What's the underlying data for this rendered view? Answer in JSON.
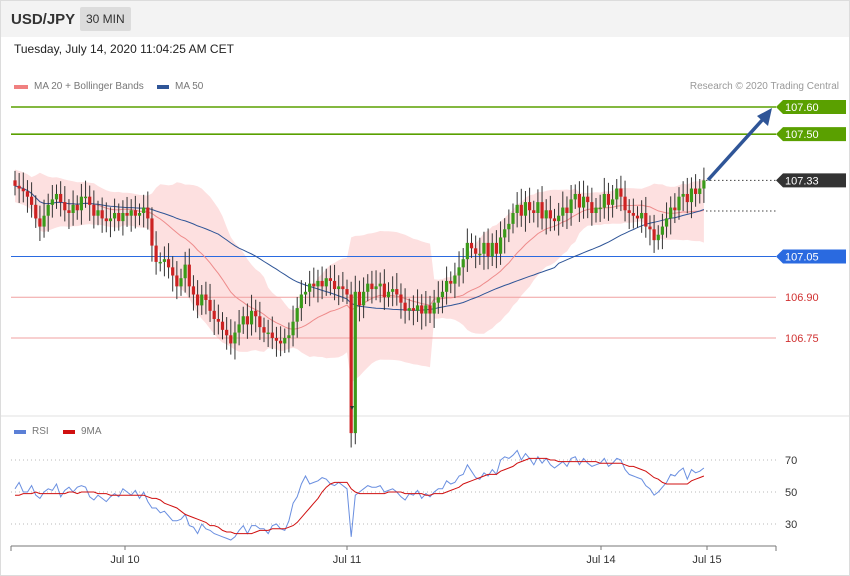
{
  "header": {
    "symbol": "USD/JPY",
    "timeframe": "30 MIN"
  },
  "timestamp": "Tuesday, July 14, 2020 11:04:25 AM CET",
  "legend_main": [
    {
      "label": "MA 20 + Bollinger Bands",
      "color": "#f08080"
    },
    {
      "label": "MA 50",
      "color": "#2f5597"
    }
  ],
  "copyright": "Research © 2020 Trading Central",
  "legend_rsi": [
    {
      "label": "RSI",
      "color": "#5b7fd6"
    },
    {
      "label": "9MA",
      "color": "#d01010"
    }
  ],
  "chart_data": {
    "type": "candlestick",
    "x_ticks": [
      "Jul 10",
      "Jul 11",
      "Jul 14",
      "Jul 15"
    ],
    "price_levels": [
      {
        "value": 107.6,
        "label": "107.60",
        "kind": "target",
        "color": "#5aa000"
      },
      {
        "value": 107.5,
        "label": "107.50",
        "kind": "target",
        "color": "#5aa000"
      },
      {
        "value": 107.33,
        "label": "107.33",
        "kind": "last",
        "color": "#333333"
      },
      {
        "value": 107.05,
        "label": "107.05",
        "kind": "pivot",
        "color": "#2a6ae0"
      },
      {
        "value": 106.9,
        "label": "106.90",
        "kind": "support",
        "color": "#e06060"
      },
      {
        "value": 106.75,
        "label": "106.75",
        "kind": "support",
        "color": "#e06060"
      }
    ],
    "close": [
      107.31,
      107.3,
      107.29,
      107.27,
      107.24,
      107.19,
      107.16,
      107.2,
      107.24,
      107.26,
      107.28,
      107.25,
      107.22,
      107.21,
      107.24,
      107.22,
      107.27,
      107.27,
      107.24,
      107.2,
      107.22,
      107.19,
      107.18,
      107.19,
      107.21,
      107.18,
      107.21,
      107.2,
      107.22,
      107.2,
      107.21,
      107.23,
      107.19,
      107.09,
      107.03,
      107.03,
      107.04,
      107.01,
      106.98,
      106.94,
      106.97,
      107.02,
      106.94,
      106.91,
      106.87,
      106.91,
      106.89,
      106.85,
      106.82,
      106.81,
      106.78,
      106.76,
      106.73,
      106.77,
      106.8,
      106.83,
      106.8,
      106.85,
      106.83,
      106.79,
      106.77,
      106.77,
      106.75,
      106.74,
      106.73,
      106.75,
      106.76,
      106.81,
      106.86,
      106.91,
      106.92,
      106.95,
      106.94,
      106.96,
      106.94,
      106.97,
      106.96,
      106.93,
      106.94,
      106.93,
      106.91,
      106.4,
      106.92,
      106.87,
      106.92,
      106.95,
      106.93,
      106.94,
      106.95,
      106.9,
      106.92,
      106.93,
      106.91,
      106.88,
      106.85,
      106.86,
      106.85,
      106.87,
      106.84,
      106.87,
      106.84,
      106.88,
      106.9,
      106.92,
      106.96,
      106.95,
      106.98,
      107.01,
      107.04,
      107.1,
      107.08,
      107.06,
      107.06,
      107.1,
      107.05,
      107.1,
      107.06,
      107.12,
      107.15,
      107.17,
      107.21,
      107.24,
      107.2,
      107.25,
      107.22,
      107.21,
      107.25,
      107.19,
      107.22,
      107.19,
      107.18,
      107.2,
      107.23,
      107.21,
      107.26,
      107.28,
      107.23,
      107.27,
      107.25,
      107.21,
      107.23,
      107.23,
      107.28,
      107.24,
      107.26,
      107.3,
      107.27,
      107.22,
      107.21,
      107.2,
      107.19,
      107.21,
      107.16,
      107.15,
      107.11,
      107.13,
      107.16,
      107.19,
      107.23,
      107.22,
      107.27,
      107.28,
      107.25,
      107.3,
      107.28,
      107.3,
      107.33
    ],
    "rsi_axis": [
      30,
      50,
      70
    ],
    "rsi": [
      52,
      56,
      50,
      50,
      54,
      48,
      46,
      50,
      52,
      51,
      55,
      47,
      51,
      53,
      50,
      53,
      54,
      53,
      47,
      45,
      48,
      46,
      44,
      47,
      49,
      47,
      52,
      50,
      48,
      51,
      46,
      50,
      44,
      40,
      40,
      37,
      38,
      35,
      32,
      32,
      33,
      36,
      29,
      28,
      24,
      30,
      27,
      26,
      24,
      23,
      22,
      21,
      20,
      22,
      26,
      29,
      24,
      29,
      29,
      27,
      27,
      24,
      29,
      30,
      27,
      26,
      32,
      43,
      47,
      55,
      60,
      55,
      56,
      57,
      59,
      58,
      55,
      54,
      56,
      54,
      52,
      22,
      48,
      50,
      52,
      54,
      53,
      53,
      54,
      50,
      51,
      52,
      50,
      47,
      45,
      49,
      48,
      51,
      46,
      49,
      47,
      50,
      52,
      52,
      57,
      55,
      56,
      60,
      61,
      67,
      63,
      59,
      58,
      62,
      60,
      64,
      61,
      70,
      72,
      71,
      73,
      76,
      70,
      74,
      71,
      67,
      72,
      68,
      71,
      67,
      65,
      67,
      69,
      66,
      71,
      72,
      67,
      71,
      68,
      66,
      67,
      68,
      71,
      66,
      68,
      71,
      70,
      64,
      61,
      60,
      59,
      58,
      54,
      52,
      48,
      50,
      53,
      56,
      61,
      60,
      63,
      65,
      58,
      64,
      62,
      63,
      65
    ],
    "rsi_ma": [
      48,
      48,
      49,
      49,
      49,
      50,
      49,
      49,
      49,
      49,
      49,
      49,
      49,
      50,
      50,
      49,
      50,
      50,
      50,
      50,
      49,
      49,
      49,
      48,
      48,
      48,
      48,
      48,
      48,
      48,
      48,
      48,
      47,
      46,
      46,
      45,
      43,
      42,
      41,
      40,
      38,
      36,
      35,
      34,
      33,
      32,
      31,
      29,
      29,
      28,
      26,
      25,
      25,
      24,
      24,
      24,
      24,
      24,
      25,
      26,
      26,
      26,
      27,
      27,
      27,
      27,
      28,
      29,
      31,
      34,
      37,
      40,
      43,
      46,
      50,
      53,
      55,
      56,
      56,
      56,
      56,
      52,
      50,
      49,
      49,
      49,
      49,
      49,
      49,
      49,
      50,
      50,
      50,
      50,
      49,
      49,
      49,
      49,
      49,
      48,
      48,
      49,
      49,
      49,
      50,
      51,
      52,
      53,
      55,
      56,
      57,
      58,
      59,
      60,
      61,
      61,
      61,
      63,
      64,
      65,
      66,
      68,
      69,
      70,
      71,
      71,
      71,
      71,
      71,
      70,
      70,
      69,
      69,
      69,
      69,
      69,
      69,
      69,
      69,
      69,
      69,
      68,
      68,
      68,
      68,
      68,
      68,
      67,
      66,
      66,
      65,
      64,
      63,
      61,
      59,
      58,
      56,
      55,
      55,
      55,
      55,
      55,
      55,
      57,
      58,
      59,
      60
    ],
    "rsi_ylim": [
      18,
      80
    ]
  }
}
